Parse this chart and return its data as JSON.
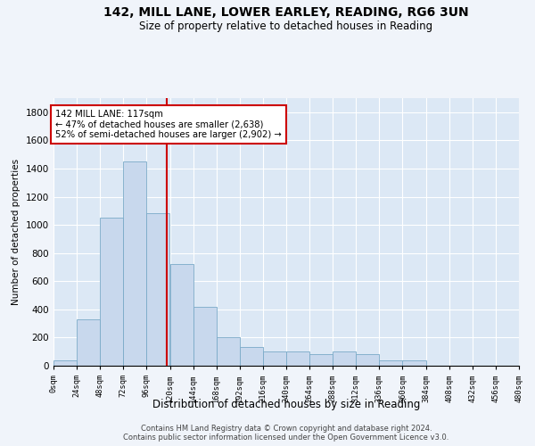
{
  "title": "142, MILL LANE, LOWER EARLEY, READING, RG6 3UN",
  "subtitle": "Size of property relative to detached houses in Reading",
  "xlabel": "Distribution of detached houses by size in Reading",
  "ylabel": "Number of detached properties",
  "bar_color": "#c8d8ed",
  "bar_edge_color": "#7aaac8",
  "background_color": "#dce8f5",
  "grid_color": "#ffffff",
  "bin_edges": [
    0,
    24,
    48,
    72,
    96,
    120,
    144,
    168,
    192,
    216,
    240,
    264,
    288,
    312,
    336,
    360,
    384,
    408,
    432,
    456,
    480
  ],
  "bar_heights": [
    40,
    330,
    1050,
    1450,
    1080,
    720,
    420,
    200,
    130,
    100,
    100,
    80,
    100,
    80,
    40,
    40,
    0,
    0,
    0,
    0
  ],
  "property_size": 117,
  "red_line_color": "#cc0000",
  "annotation_text": "142 MILL LANE: 117sqm\n← 47% of detached houses are smaller (2,638)\n52% of semi-detached houses are larger (2,902) →",
  "annotation_box_color": "#ffffff",
  "annotation_box_edge": "#cc0000",
  "tick_labels": [
    "0sqm",
    "24sqm",
    "48sqm",
    "72sqm",
    "96sqm",
    "120sqm",
    "144sqm",
    "168sqm",
    "192sqm",
    "216sqm",
    "240sqm",
    "264sqm",
    "288sqm",
    "312sqm",
    "336sqm",
    "360sqm",
    "384sqm",
    "408sqm",
    "432sqm",
    "456sqm",
    "480sqm"
  ],
  "yticks": [
    0,
    200,
    400,
    600,
    800,
    1000,
    1200,
    1400,
    1600,
    1800
  ],
  "ylim": [
    0,
    1900
  ],
  "footer1": "Contains HM Land Registry data © Crown copyright and database right 2024.",
  "footer2": "Contains public sector information licensed under the Open Government Licence v3.0."
}
